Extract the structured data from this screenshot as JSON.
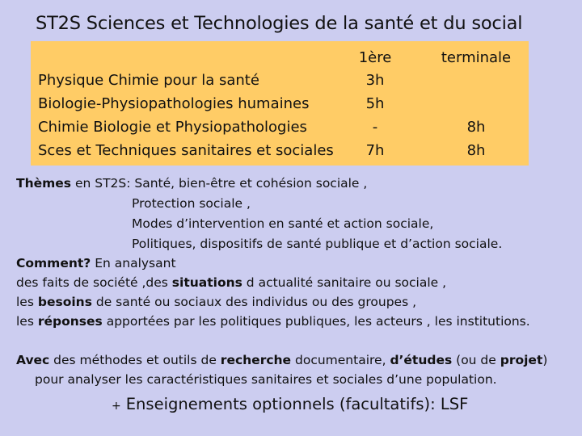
{
  "title": "ST2S  Sciences et Technologies de la santé et du social",
  "table": {
    "header": {
      "col1": "1ère",
      "col2": "terminale"
    },
    "rows": [
      {
        "subject": "Physique Chimie pour la santé",
        "premiere": "3h",
        "terminale": ""
      },
      {
        "subject": "Biologie-Physiopathologies humaines",
        "premiere": "5h",
        "terminale": ""
      },
      {
        "subject": "Chimie Biologie et Physiopathologies",
        "premiere": "-",
        "terminale": "8h"
      },
      {
        "subject": "Sces et Techniques sanitaires et sociales",
        "premiere": "7h",
        "terminale": "8h"
      }
    ]
  },
  "themes": {
    "label": "Thèmes",
    "intro": " en ST2S:  Santé, bien-être et cohésion sociale ,",
    "items": [
      "Protection sociale ,",
      "Modes d’intervention en santé et action sociale,",
      "Politiques, dispositifs de santé publique et d’action sociale."
    ]
  },
  "comment": {
    "label": "Comment?",
    "rest": "  En analysant",
    "line1_a": "des faits de société ,des ",
    "line1_b": "situations",
    "line1_c": " d actualité sanitaire ou sociale ,",
    "line2_a": "les ",
    "line2_b": "besoins",
    "line2_c": " de santé ou sociaux des individus  ou des groupes ,",
    "line3_a": "les ",
    "line3_b": "réponses",
    "line3_c": " apportées par les politiques publiques, les acteurs , les institutions."
  },
  "avec": {
    "label": "Avec",
    "t1": " des méthodes et outils de ",
    "b1": "recherche",
    "t2": " documentaire, ",
    "b2": "d’études",
    "t3": " (ou de ",
    "b3": "projet",
    "t4": ")",
    "line2": "pour analyser les caractéristiques sanitaires et sociales d’une population."
  },
  "footer": {
    "plus": "+",
    "text": "Enseignements optionnels (facultatifs): LSF"
  }
}
